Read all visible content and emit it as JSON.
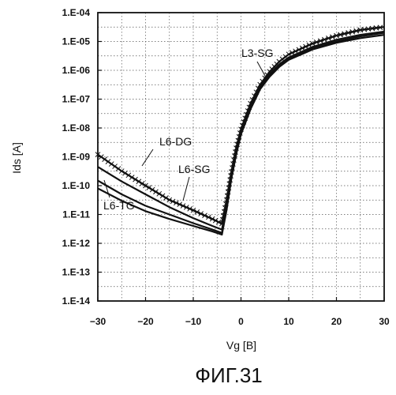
{
  "chart_data": {
    "type": "line",
    "xlabel": "Vg [B]",
    "ylabel": "Ids [A]",
    "xlim": [
      -30,
      30
    ],
    "ylim_exponent": [
      -14,
      -4
    ],
    "y_scale": "log",
    "x_ticks": [
      "−30",
      "−20",
      "−10",
      "0",
      "10",
      "20",
      "30"
    ],
    "y_ticks": [
      "1.E-14",
      "1.E-13",
      "1.E-12",
      "1.E-11",
      "1.E-10",
      "1.E-09",
      "1.E-08",
      "1.E-07",
      "1.E-06",
      "1.E-05",
      "1.E-04"
    ],
    "grid": true,
    "caption": "ФИГ.31",
    "series": [
      {
        "name": "L3-SG",
        "marker": "x",
        "points": [
          [
            -30,
            1.2e-09
          ],
          [
            -25,
            3.2e-10
          ],
          [
            -20,
            1e-10
          ],
          [
            -15,
            3.2e-11
          ],
          [
            -10,
            1.4e-11
          ],
          [
            -6,
            7e-12
          ],
          [
            -4,
            4.8e-12
          ],
          [
            -3,
            3.2e-11
          ],
          [
            -2,
            3e-10
          ],
          [
            -1,
            2e-09
          ],
          [
            0,
            9e-09
          ],
          [
            2,
            7e-08
          ],
          [
            4,
            3.2e-07
          ],
          [
            6,
            9e-07
          ],
          [
            8,
            2e-06
          ],
          [
            10,
            3.6e-06
          ],
          [
            15,
            8.5e-06
          ],
          [
            20,
            1.6e-05
          ],
          [
            25,
            2.5e-05
          ],
          [
            30,
            3.2e-05
          ]
        ]
      },
      {
        "name": "L6-DG",
        "marker": "none",
        "points": [
          [
            -30,
            1.5e-10
          ],
          [
            -25,
            5e-11
          ],
          [
            -20,
            2e-11
          ],
          [
            -15,
            1e-11
          ],
          [
            -10,
            5e-12
          ],
          [
            -6,
            3e-12
          ],
          [
            -4,
            2.3e-12
          ],
          [
            -3,
            1.8e-11
          ],
          [
            -2,
            2e-10
          ],
          [
            -1,
            1.4e-09
          ],
          [
            0,
            6.5e-09
          ],
          [
            2,
            5e-08
          ],
          [
            4,
            2.5e-07
          ],
          [
            6,
            7e-07
          ],
          [
            8,
            1.5e-06
          ],
          [
            10,
            2.6e-06
          ],
          [
            15,
            6e-06
          ],
          [
            20,
            1e-05
          ],
          [
            25,
            1.5e-05
          ],
          [
            30,
            2e-05
          ]
        ]
      },
      {
        "name": "L6-SG",
        "marker": "none",
        "points": [
          [
            -30,
            4.5e-10
          ],
          [
            -25,
            1.4e-10
          ],
          [
            -20,
            5e-11
          ],
          [
            -15,
            1.8e-11
          ],
          [
            -10,
            7.5e-12
          ],
          [
            -6,
            4e-12
          ],
          [
            -4,
            3e-12
          ],
          [
            -3,
            2.2e-11
          ],
          [
            -2,
            2.4e-10
          ],
          [
            -1,
            1.6e-09
          ],
          [
            0,
            7.5e-09
          ],
          [
            2,
            5.5e-08
          ],
          [
            4,
            2.8e-07
          ],
          [
            6,
            7.5e-07
          ],
          [
            8,
            1.6e-06
          ],
          [
            10,
            2.8e-06
          ],
          [
            15,
            6.5e-06
          ],
          [
            20,
            1.15e-05
          ],
          [
            25,
            1.7e-05
          ],
          [
            30,
            2.2e-05
          ]
        ]
      },
      {
        "name": "L6-TG",
        "marker": "none",
        "points": [
          [
            -30,
            8e-11
          ],
          [
            -25,
            3e-11
          ],
          [
            -20,
            1.3e-11
          ],
          [
            -15,
            7e-12
          ],
          [
            -10,
            4e-12
          ],
          [
            -6,
            2.6e-12
          ],
          [
            -4,
            2e-12
          ],
          [
            -3,
            1.5e-11
          ],
          [
            -2,
            1.8e-10
          ],
          [
            -1,
            1.2e-09
          ],
          [
            0,
            6e-09
          ],
          [
            2,
            4.5e-08
          ],
          [
            4,
            2.2e-07
          ],
          [
            6,
            6e-07
          ],
          [
            8,
            1.3e-06
          ],
          [
            10,
            2.3e-06
          ],
          [
            15,
            5.3e-06
          ],
          [
            20,
            9e-06
          ],
          [
            25,
            1.3e-05
          ],
          [
            30,
            1.7e-05
          ]
        ]
      }
    ]
  }
}
